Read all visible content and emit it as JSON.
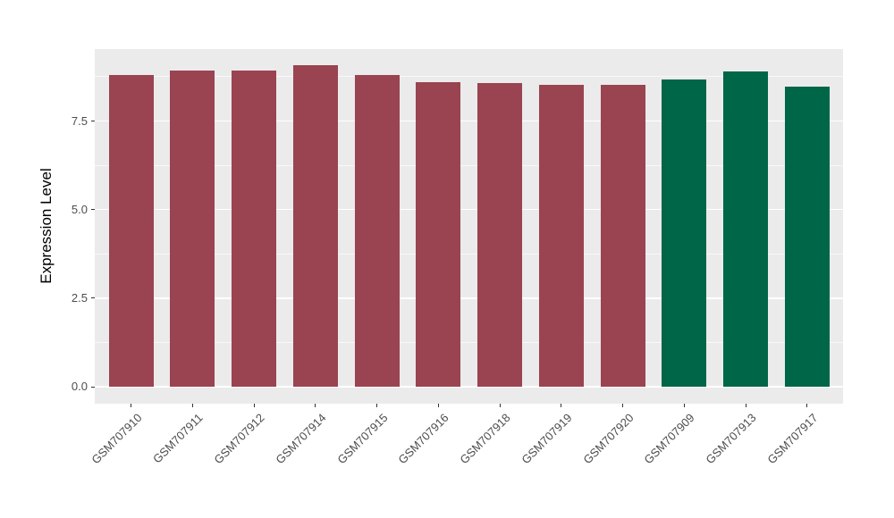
{
  "chart_data": {
    "type": "bar",
    "title": "",
    "xlabel": "",
    "ylabel": "Expression Level",
    "categories": [
      "GSM707910",
      "GSM707911",
      "GSM707912",
      "GSM707914",
      "GSM707915",
      "GSM707916",
      "GSM707918",
      "GSM707919",
      "GSM707920",
      "GSM707909",
      "GSM707913",
      "GSM707917"
    ],
    "values": [
      8.8,
      8.92,
      8.92,
      9.08,
      8.79,
      8.6,
      8.56,
      8.53,
      8.53,
      8.68,
      8.9,
      8.47
    ],
    "bar_colors": [
      "#9A4351",
      "#9A4351",
      "#9A4351",
      "#9A4351",
      "#9A4351",
      "#9A4351",
      "#9A4351",
      "#9A4351",
      "#9A4351",
      "#006648",
      "#006648",
      "#006648"
    ],
    "ylim": [
      0,
      9.53
    ],
    "yticks": [
      {
        "value": 0.0,
        "label": "0.0"
      },
      {
        "value": 2.5,
        "label": "2.5"
      },
      {
        "value": 5.0,
        "label": "5.0"
      },
      {
        "value": 7.5,
        "label": "7.5"
      }
    ],
    "yticks_minor": [
      1.25,
      3.75,
      6.25,
      8.75
    ],
    "grid": true,
    "legend": "none",
    "colors": {
      "panel_bg": "#EBEBEB",
      "grid": "#FFFFFF",
      "axis_text": "#4D4D4D",
      "axis_title": "#000000",
      "tick_mark": "#333333",
      "group_red": "#9A4351",
      "group_green": "#006648"
    }
  }
}
